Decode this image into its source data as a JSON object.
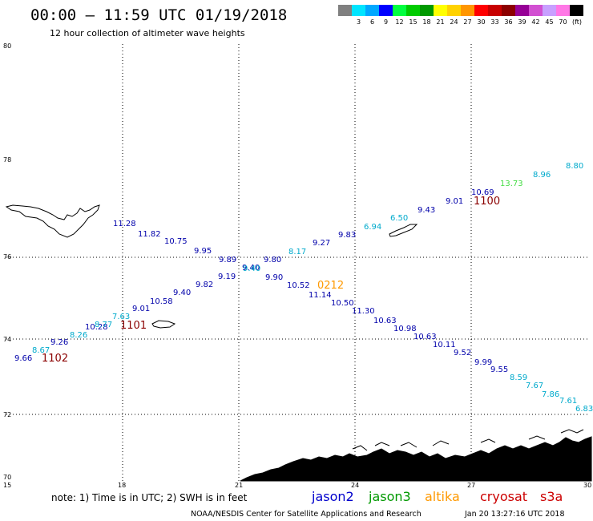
{
  "header": {
    "title": "00:00 – 11:59 UTC 01/19/2018",
    "subtitle": "12 hour collection of altimeter wave heights"
  },
  "legend": {
    "unit": "(ft)",
    "items": [
      {
        "color": "#808080",
        "label": ""
      },
      {
        "color": "#00e5ff",
        "label": "3"
      },
      {
        "color": "#00a8ff",
        "label": "6"
      },
      {
        "color": "#0000ff",
        "label": "9"
      },
      {
        "color": "#00ff40",
        "label": "12"
      },
      {
        "color": "#00cc00",
        "label": "15"
      },
      {
        "color": "#009900",
        "label": "18"
      },
      {
        "color": "#ffff00",
        "label": "21"
      },
      {
        "color": "#ffd200",
        "label": "24"
      },
      {
        "color": "#ff9600",
        "label": "27"
      },
      {
        "color": "#ff0000",
        "label": "30"
      },
      {
        "color": "#c80000",
        "label": "33"
      },
      {
        "color": "#8c0000",
        "label": "36"
      },
      {
        "color": "#960096",
        "label": "39"
      },
      {
        "color": "#d250d2",
        "label": "42"
      },
      {
        "color": "#c8a0ff",
        "label": "45"
      },
      {
        "color": "#ff78e6",
        "label": "70"
      },
      {
        "color": "#000000",
        "label": ""
      }
    ]
  },
  "axes": {
    "lat_ticks": [
      "80",
      "78",
      "76",
      "74",
      "72",
      "70"
    ],
    "lon_ticks": [
      "15",
      "18",
      "21",
      "24",
      "27",
      "30"
    ]
  },
  "satellites": [
    {
      "name": "jason2",
      "color": "#0000cc"
    },
    {
      "name": "jason3",
      "color": "#009900"
    },
    {
      "name": "altika",
      "color": "#ff9900"
    },
    {
      "name": "cryosat",
      "color": "#cc0000"
    },
    {
      "name": "s3a",
      "color": "#cc0000"
    }
  ],
  "footer": {
    "note": "note: 1) Time is in UTC; 2) SWH is in feet",
    "credit": "NOAA/NESDIS Center for Satellite Applications and Research",
    "timestamp": "Jan 20 13:27:16 UTC 2018"
  },
  "observations": [
    {
      "text": "11.28",
      "color": "#0000aa"
    },
    {
      "text": "11.82",
      "color": "#0000aa"
    },
    {
      "text": "10.75",
      "color": "#0000aa"
    },
    {
      "text": "9.95",
      "color": "#0000aa"
    },
    {
      "text": "9.89",
      "color": "#0000aa"
    },
    {
      "text": "9.40",
      "color": "#0000aa"
    },
    {
      "text": "9.90",
      "color": "#0000aa"
    },
    {
      "text": "10.52",
      "color": "#0000aa"
    },
    {
      "text": "11.14",
      "color": "#0000aa"
    },
    {
      "text": "10.50",
      "color": "#0000aa"
    },
    {
      "text": "11.30",
      "color": "#0000aa"
    },
    {
      "text": "10.63",
      "color": "#0000aa"
    },
    {
      "text": "10.98",
      "color": "#0000aa"
    },
    {
      "text": "10.63",
      "color": "#0000aa"
    },
    {
      "text": "10.11",
      "color": "#0000aa"
    },
    {
      "text": "9.52",
      "color": "#0000aa"
    },
    {
      "text": "9.99",
      "color": "#0000aa"
    },
    {
      "text": "9.55",
      "color": "#0000aa"
    },
    {
      "text": "8.59",
      "color": "#00aacc"
    },
    {
      "text": "7.67",
      "color": "#00aacc"
    },
    {
      "text": "7.86",
      "color": "#00aacc"
    },
    {
      "text": "7.61",
      "color": "#00aacc"
    },
    {
      "text": "6.83",
      "color": "#00aacc"
    },
    {
      "text": "9.66",
      "color": "#0000aa"
    },
    {
      "text": "8.67",
      "color": "#00aacc"
    },
    {
      "text": "9.26",
      "color": "#0000aa"
    },
    {
      "text": "8.26",
      "color": "#00aacc"
    },
    {
      "text": "10.28",
      "color": "#0000aa"
    },
    {
      "text": "8.77",
      "color": "#00aacc"
    },
    {
      "text": "7.63",
      "color": "#00aacc"
    },
    {
      "text": "9.01",
      "color": "#0000aa"
    },
    {
      "text": "10.58",
      "color": "#0000aa"
    },
    {
      "text": "9.40",
      "color": "#0000aa"
    },
    {
      "text": "9.82",
      "color": "#0000aa"
    },
    {
      "text": "9.19",
      "color": "#0000aa"
    },
    {
      "text": "9.40",
      "color": "#00aacc"
    },
    {
      "text": "9.80",
      "color": "#0000aa"
    },
    {
      "text": "8.17",
      "color": "#00aacc"
    },
    {
      "text": "9.27",
      "color": "#0000aa"
    },
    {
      "text": "9.83",
      "color": "#0000aa"
    },
    {
      "text": "6.94",
      "color": "#00aacc"
    },
    {
      "text": "6.50",
      "color": "#00aacc"
    },
    {
      "text": "9.43",
      "color": "#0000aa"
    },
    {
      "text": "9.01",
      "color": "#0000aa"
    },
    {
      "text": "10.69",
      "color": "#0000aa"
    },
    {
      "text": "13.73",
      "color": "#44dd44"
    },
    {
      "text": "8.96",
      "color": "#00aacc"
    },
    {
      "text": "8.80",
      "color": "#00aacc"
    }
  ],
  "pass_labels": [
    {
      "text": "1102",
      "color": "#8b0000"
    },
    {
      "text": "1101",
      "color": "#8b0000"
    },
    {
      "text": "1100",
      "color": "#8b0000"
    },
    {
      "text": "0212",
      "color": "#ff9900"
    }
  ]
}
